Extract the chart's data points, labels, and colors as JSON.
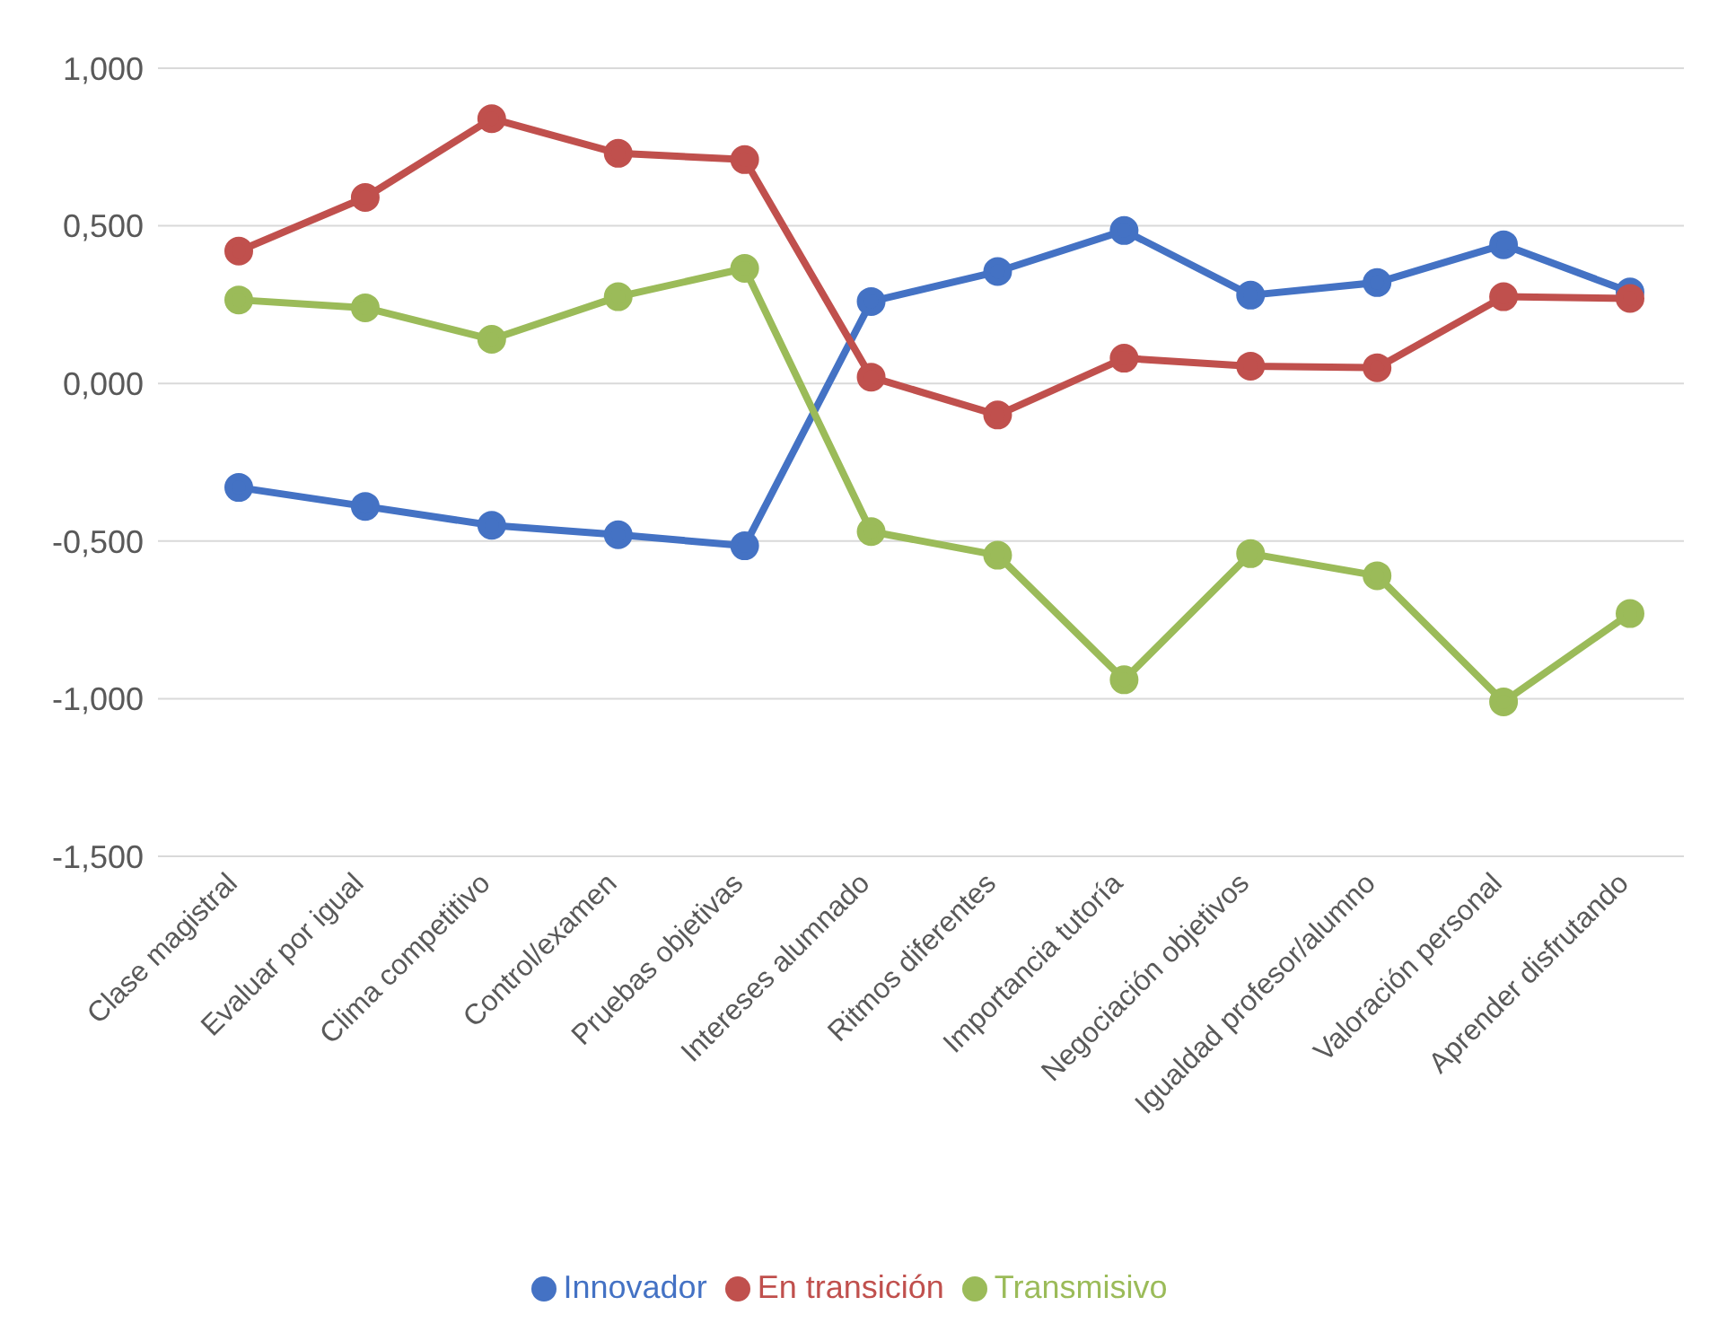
{
  "chart_data": {
    "type": "line",
    "categories": [
      "Clase magistral",
      "Evaluar por igual",
      "Clima competitivo",
      "Control/examen",
      "Pruebas objetivas",
      "Intereses alumnado",
      "Ritmos diferentes",
      "Importancia tutoría",
      "Negociación objetivos",
      "Igualdad profesor/alumno",
      "Valoración personal",
      "Aprender disfrutando"
    ],
    "series": [
      {
        "name": "Innovador",
        "color": "#4472c4",
        "values": [
          -0.33,
          -0.39,
          -0.45,
          -0.48,
          -0.515,
          0.26,
          0.355,
          0.485,
          0.28,
          0.32,
          0.44,
          0.29
        ]
      },
      {
        "name": "En transición",
        "color": "#c0504d",
        "values": [
          0.42,
          0.59,
          0.84,
          0.73,
          0.71,
          0.02,
          -0.1,
          0.08,
          0.055,
          0.05,
          0.275,
          0.27
        ]
      },
      {
        "name": "Transmisivo",
        "color": "#9bbb59",
        "values": [
          0.265,
          0.24,
          0.14,
          0.275,
          0.365,
          -0.47,
          -0.545,
          -0.94,
          -0.54,
          -0.61,
          -1.01,
          -0.73
        ]
      }
    ],
    "ylim": [
      -1.5,
      1
    ],
    "yticks": [
      {
        "value": -1.5,
        "label": "-1,500"
      },
      {
        "value": -1,
        "label": "-1,000"
      },
      {
        "value": -0.5,
        "label": "-0,500"
      },
      {
        "value": 0,
        "label": "0,000"
      },
      {
        "value": 0.5,
        "label": "0,500"
      },
      {
        "value": 1,
        "label": "1,000"
      }
    ],
    "grid": "y",
    "legend": "bottom",
    "marker": "circle",
    "line_style": "solid"
  }
}
